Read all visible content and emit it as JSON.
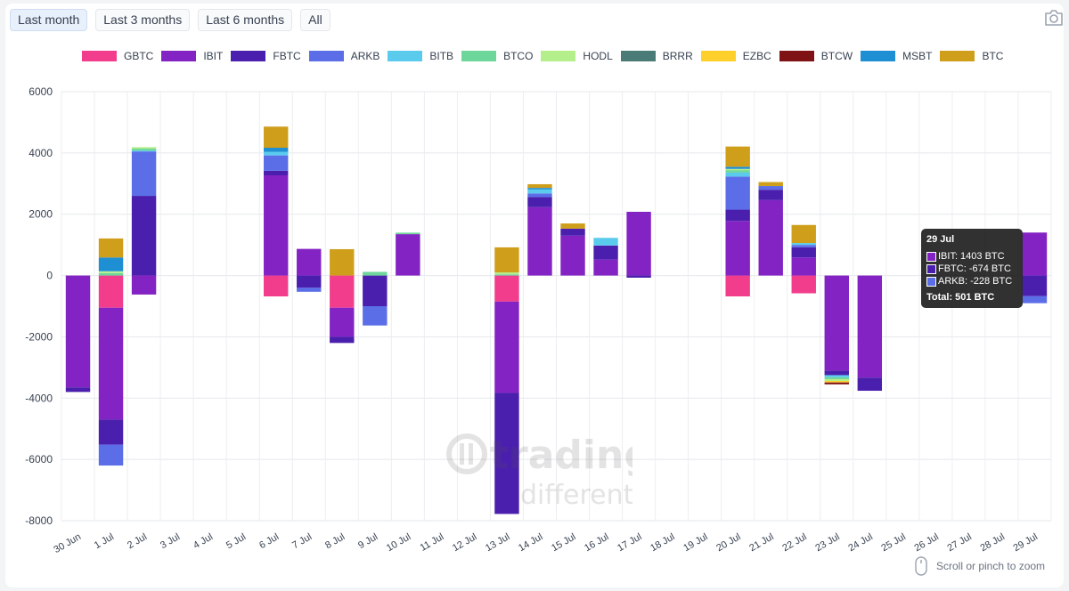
{
  "range_buttons": [
    {
      "label": "Last month",
      "active": true
    },
    {
      "label": "Last 3 months",
      "active": false
    },
    {
      "label": "Last 6 months",
      "active": false
    },
    {
      "label": "All",
      "active": false
    }
  ],
  "icons": {
    "camera": "camera-icon",
    "mouse": "mouse-icon"
  },
  "zoom_hint": "Scroll or pinch to zoom",
  "watermark": {
    "line1": "trading",
    "line2": "different"
  },
  "tooltip": {
    "title": "29 Jul",
    "rows": [
      {
        "text": "IBIT: 1403 BTC",
        "color": "#8323c4"
      },
      {
        "text": "FBTC: -674 BTC",
        "color": "#4b1fad"
      },
      {
        "text": "ARKB: -228 BTC",
        "color": "#5b6ee8"
      }
    ],
    "total": "Total: 501 BTC"
  },
  "chart_data": {
    "type": "bar",
    "stacked": true,
    "title": "",
    "xlabel": "",
    "ylabel": "",
    "ylim": [
      -8000,
      6000
    ],
    "yticks": [
      6000,
      4000,
      2000,
      0,
      -2000,
      -4000,
      -6000,
      -8000
    ],
    "grid": true,
    "legend_position": "top",
    "categories": [
      "30 Jun",
      "1 Jul",
      "2 Jul",
      "3 Jul",
      "4 Jul",
      "5 Jul",
      "6 Jul",
      "7 Jul",
      "8 Jul",
      "9 Jul",
      "10 Jul",
      "11 Jul",
      "12 Jul",
      "13 Jul",
      "14 Jul",
      "15 Jul",
      "16 Jul",
      "17 Jul",
      "18 Jul",
      "19 Jul",
      "20 Jul",
      "21 Jul",
      "22 Jul",
      "23 Jul",
      "24 Jul",
      "25 Jul",
      "26 Jul",
      "27 Jul",
      "28 Jul",
      "29 Jul"
    ],
    "series": [
      {
        "name": "GBTC",
        "color": "#f23d8c",
        "values": [
          0,
          -1050,
          0,
          0,
          0,
          0,
          -680,
          0,
          -1050,
          0,
          0,
          0,
          0,
          -850,
          0,
          0,
          0,
          0,
          0,
          0,
          -680,
          0,
          -580,
          0,
          0,
          0,
          0,
          0,
          0,
          0
        ]
      },
      {
        "name": "IBIT",
        "color": "#8323c4",
        "values": [
          -3650,
          -3650,
          -620,
          0,
          0,
          0,
          3270,
          870,
          -950,
          0,
          1350,
          0,
          0,
          -2980,
          2230,
          1300,
          520,
          2080,
          0,
          0,
          1780,
          2460,
          590,
          -3100,
          -3330,
          0,
          0,
          0,
          0,
          1403
        ]
      },
      {
        "name": "FBTC",
        "color": "#4b1fad",
        "values": [
          -150,
          -820,
          2600,
          0,
          0,
          0,
          150,
          -400,
          -200,
          -1000,
          0,
          0,
          0,
          -3950,
          330,
          230,
          460,
          -70,
          0,
          0,
          370,
          340,
          330,
          -150,
          -430,
          0,
          0,
          0,
          0,
          -674
        ]
      },
      {
        "name": "ARKB",
        "color": "#5b6ee8",
        "values": [
          0,
          -680,
          1450,
          0,
          0,
          0,
          500,
          -130,
          0,
          -630,
          0,
          0,
          0,
          0,
          120,
          0,
          0,
          0,
          0,
          0,
          1080,
          120,
          80,
          0,
          0,
          0,
          0,
          0,
          0,
          -228
        ]
      },
      {
        "name": "BITB",
        "color": "#5bcbed",
        "values": [
          0,
          0,
          30,
          0,
          0,
          0,
          120,
          0,
          0,
          0,
          0,
          0,
          0,
          0,
          130,
          0,
          250,
          0,
          0,
          0,
          130,
          0,
          60,
          -70,
          0,
          0,
          0,
          0,
          0,
          0
        ]
      },
      {
        "name": "BTCO",
        "color": "#6dd69a",
        "values": [
          0,
          80,
          60,
          0,
          0,
          0,
          0,
          0,
          0,
          120,
          50,
          0,
          0,
          40,
          0,
          0,
          0,
          0,
          0,
          0,
          80,
          0,
          0,
          -60,
          0,
          0,
          0,
          0,
          0,
          0
        ]
      },
      {
        "name": "HODL",
        "color": "#b4ef8b",
        "values": [
          0,
          60,
          50,
          0,
          0,
          0,
          0,
          0,
          0,
          0,
          0,
          0,
          0,
          60,
          0,
          0,
          0,
          0,
          0,
          0,
          40,
          0,
          0,
          -60,
          0,
          0,
          0,
          0,
          0,
          0
        ]
      },
      {
        "name": "BRRR",
        "color": "#4b7b76",
        "values": [
          0,
          0,
          0,
          0,
          0,
          0,
          0,
          0,
          0,
          0,
          0,
          0,
          0,
          0,
          0,
          0,
          0,
          0,
          0,
          0,
          0,
          0,
          0,
          0,
          0,
          0,
          0,
          0,
          0,
          0
        ]
      },
      {
        "name": "EZBC",
        "color": "#ffd02b",
        "values": [
          0,
          0,
          0,
          0,
          0,
          0,
          0,
          0,
          0,
          0,
          0,
          0,
          0,
          0,
          0,
          0,
          0,
          0,
          0,
          0,
          0,
          0,
          0,
          -50,
          0,
          0,
          0,
          0,
          0,
          0
        ]
      },
      {
        "name": "BTCW",
        "color": "#7f1214",
        "values": [
          0,
          0,
          0,
          0,
          0,
          0,
          0,
          0,
          0,
          0,
          0,
          0,
          0,
          0,
          0,
          0,
          0,
          0,
          0,
          0,
          0,
          0,
          0,
          -60,
          0,
          0,
          0,
          0,
          0,
          0
        ]
      },
      {
        "name": "MSBT",
        "color": "#1f8fd3",
        "values": [
          0,
          450,
          0,
          0,
          0,
          0,
          130,
          0,
          0,
          0,
          0,
          0,
          0,
          0,
          50,
          0,
          0,
          0,
          0,
          0,
          70,
          0,
          0,
          0,
          0,
          0,
          0,
          0,
          0,
          0
        ]
      },
      {
        "name": "BTC",
        "color": "#cf9e1b",
        "values": [
          0,
          620,
          0,
          0,
          0,
          0,
          690,
          0,
          860,
          0,
          0,
          0,
          0,
          820,
          120,
          170,
          0,
          0,
          0,
          0,
          660,
          130,
          590,
          0,
          0,
          0,
          0,
          0,
          0,
          0
        ]
      }
    ]
  }
}
